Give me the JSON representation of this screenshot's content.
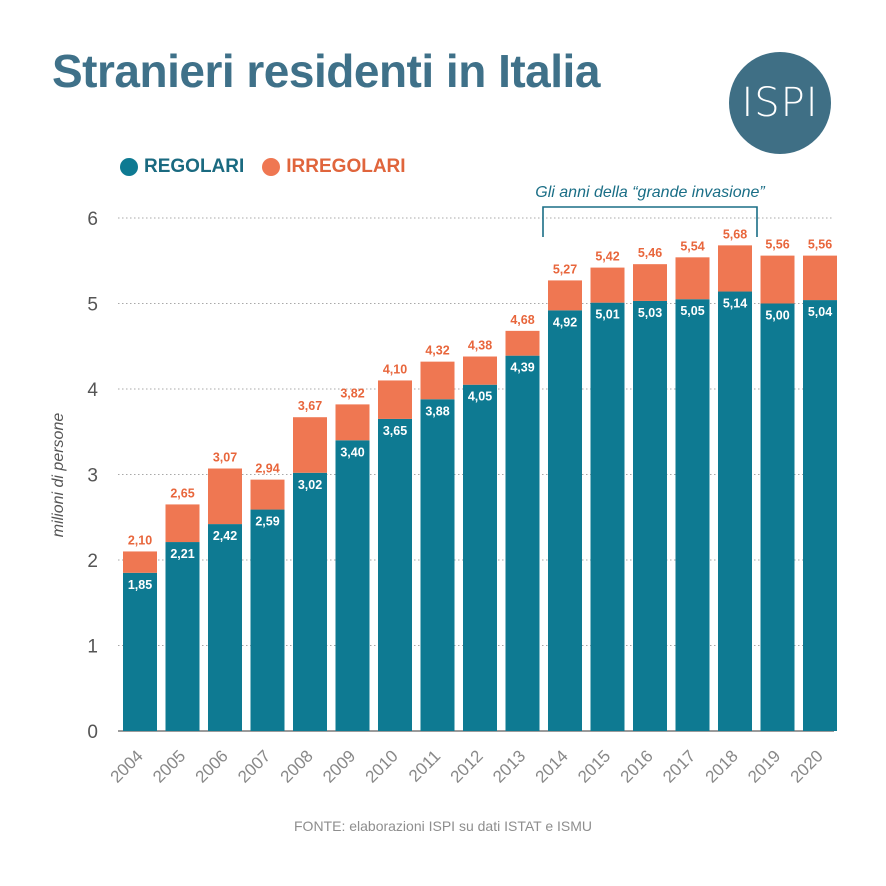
{
  "title": "Stranieri residenti in Italia",
  "logo_text": "ISPI",
  "legend": [
    {
      "label": "REGOLARI",
      "color": "#0e7a92"
    },
    {
      "label": "IRREGOLARI",
      "color": "#ef7752"
    }
  ],
  "annotation": "Gli anni della “grande invasione”",
  "source": "FONTE: elaborazioni ISPI su dati ISTAT e ISMU",
  "chart_data": {
    "type": "bar",
    "stacked": true,
    "categories": [
      "2004",
      "2005",
      "2006",
      "2007",
      "2008",
      "2009",
      "2010",
      "2011",
      "2012",
      "2013",
      "2014",
      "2015",
      "2016",
      "2017",
      "2018",
      "2019",
      "2020"
    ],
    "series": [
      {
        "name": "REGOLARI",
        "color": "#0e7a92",
        "values": [
          1.85,
          2.21,
          2.42,
          2.59,
          3.02,
          3.4,
          3.65,
          3.88,
          4.05,
          4.39,
          4.92,
          5.01,
          5.03,
          5.05,
          5.14,
          5.0,
          5.04
        ],
        "labels": [
          "1,85",
          "2,21",
          "2,42",
          "2,59",
          "3,02",
          "3,40",
          "3,65",
          "3,88",
          "4,05",
          "4,39",
          "4,92",
          "5,01",
          "5,03",
          "5,05",
          "5,14",
          "5,00",
          "5,04"
        ]
      },
      {
        "name": "IRREGOLARI",
        "color": "#ef7752",
        "values": [
          0.25,
          0.44,
          0.65,
          0.35,
          0.65,
          0.42,
          0.45,
          0.44,
          0.33,
          0.29,
          0.35,
          0.41,
          0.43,
          0.49,
          0.54,
          0.56,
          0.52
        ]
      }
    ],
    "totals": [
      2.1,
      2.65,
      3.07,
      2.94,
      3.67,
      3.82,
      4.1,
      4.32,
      4.38,
      4.68,
      5.27,
      5.42,
      5.46,
      5.54,
      5.68,
      5.56,
      5.56
    ],
    "total_labels": [
      "2,10",
      "2,65",
      "3,07",
      "2,94",
      "3,67",
      "3,82",
      "4,10",
      "4,32",
      "4,38",
      "4,68",
      "5,27",
      "5,42",
      "5,46",
      "5,54",
      "5,68",
      "5,56",
      "5,56"
    ],
    "ylabel": "milioni di persone",
    "ylim": [
      0,
      6
    ],
    "yticks": [
      0,
      1,
      2,
      3,
      4,
      5,
      6
    ],
    "grid": true,
    "bracket_range": [
      "2014",
      "2018"
    ]
  }
}
